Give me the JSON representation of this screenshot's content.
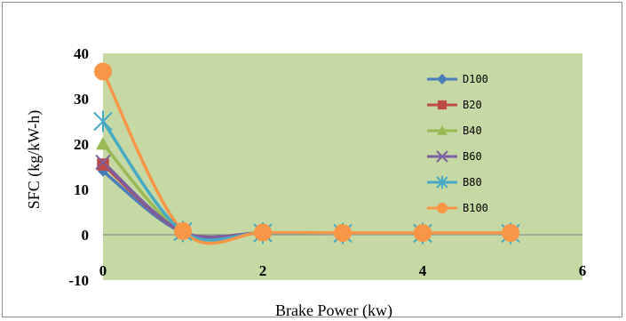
{
  "chart_data": {
    "type": "line",
    "xlabel": "Brake Power (kw)",
    "ylabel": "SFC (kg/kW-h)",
    "xlim": [
      0,
      6
    ],
    "ylim": [
      -10,
      40
    ],
    "xticks": [
      0,
      2,
      4,
      6
    ],
    "yticks": [
      -10,
      0,
      10,
      20,
      30,
      40
    ],
    "plot_background": "#c6d9a4",
    "grid": false,
    "legend_position": "right",
    "smooth": true,
    "series": [
      {
        "name": "D100",
        "color": "#4a7ebb",
        "marker": "diamond",
        "x": [
          0,
          1,
          2,
          3,
          4,
          5.1
        ],
        "y": [
          14,
          0.5,
          0.4,
          0.3,
          0.3,
          0.3
        ]
      },
      {
        "name": "B20",
        "color": "#be4b48",
        "marker": "square",
        "x": [
          0,
          1,
          2,
          3,
          4,
          5.1
        ],
        "y": [
          15.5,
          0.6,
          0.4,
          0.3,
          0.3,
          0.3
        ]
      },
      {
        "name": "B40",
        "color": "#98b954",
        "marker": "triangle",
        "x": [
          0,
          1,
          2,
          3,
          4,
          5.1
        ],
        "y": [
          20,
          0.6,
          0.4,
          0.3,
          0.3,
          0.3
        ]
      },
      {
        "name": "B60",
        "color": "#7d5fa0",
        "marker": "x",
        "x": [
          0,
          1,
          2,
          3,
          4,
          5.1
        ],
        "y": [
          16,
          0.6,
          0.4,
          0.3,
          0.3,
          0.3
        ]
      },
      {
        "name": "B80",
        "color": "#46aac5",
        "marker": "star",
        "x": [
          0,
          1,
          2,
          3,
          4,
          5.1
        ],
        "y": [
          25,
          0.7,
          0.4,
          0.3,
          0.3,
          0.3
        ]
      },
      {
        "name": "B100",
        "color": "#f79646",
        "marker": "circle",
        "x": [
          0,
          1,
          2,
          3,
          4,
          5.1
        ],
        "y": [
          36,
          0.8,
          0.5,
          0.4,
          0.4,
          0.4
        ]
      }
    ]
  }
}
